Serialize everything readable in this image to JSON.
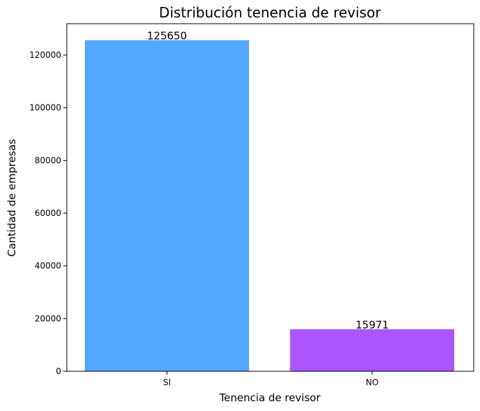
{
  "chart_data": {
    "type": "bar",
    "title": "Distribución tenencia de revisor",
    "xlabel": "Tenencia de revisor",
    "ylabel": "Cantidad de empresas",
    "categories": [
      "SI",
      "NO"
    ],
    "values": [
      125650,
      15971
    ],
    "data_labels": [
      "125650",
      "15971"
    ],
    "colors": [
      "#52a9ff",
      "#aa55ff"
    ],
    "ylim": [
      0,
      131900
    ],
    "yticks": [
      0,
      20000,
      40000,
      60000,
      80000,
      100000,
      120000
    ],
    "ytick_labels": [
      "0",
      "20000",
      "40000",
      "60000",
      "80000",
      "100000",
      "120000"
    ],
    "grid": false,
    "legend": "none"
  }
}
